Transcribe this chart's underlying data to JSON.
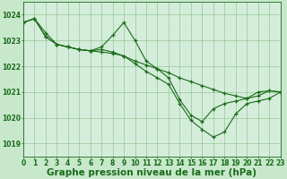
{
  "background_color": "#c8e8cc",
  "plot_bg_color": "#d4edda",
  "grid_color": "#88bb88",
  "line_color": "#1a6b1a",
  "xlabel": "Graphe pression niveau de la mer (hPa)",
  "xlabel_fontsize": 7.5,
  "tick_fontsize": 5.5,
  "ylim": [
    1018.5,
    1024.5
  ],
  "xlim": [
    0,
    23
  ],
  "yticks": [
    1019,
    1020,
    1021,
    1022,
    1023,
    1024
  ],
  "xticks": [
    0,
    1,
    2,
    3,
    4,
    5,
    6,
    7,
    8,
    9,
    10,
    11,
    12,
    13,
    14,
    15,
    16,
    17,
    18,
    19,
    20,
    21,
    22,
    23
  ],
  "series1": {
    "x": [
      0,
      1,
      2,
      3,
      4,
      5,
      6,
      7,
      8,
      9,
      10,
      11,
      12,
      13,
      14,
      15,
      16,
      17,
      18,
      19,
      20,
      21,
      22,
      23
    ],
    "y": [
      1023.7,
      1023.85,
      1023.3,
      1022.85,
      1022.75,
      1022.65,
      1022.6,
      1022.55,
      1022.5,
      1022.4,
      1022.2,
      1022.05,
      1021.9,
      1021.75,
      1021.55,
      1021.4,
      1021.25,
      1021.1,
      1020.95,
      1020.85,
      1020.75,
      1021.0,
      1021.05,
      1021.0
    ]
  },
  "series2": {
    "x": [
      0,
      1,
      2,
      3,
      4,
      5,
      6,
      7,
      8,
      9,
      10,
      11,
      12,
      13,
      14,
      15,
      16,
      17,
      18,
      19,
      20,
      21,
      22,
      23
    ],
    "y": [
      1023.7,
      1023.85,
      1023.15,
      1022.85,
      1022.75,
      1022.65,
      1022.6,
      1022.75,
      1023.2,
      1023.7,
      1023.0,
      1022.2,
      1021.9,
      1021.55,
      1020.7,
      1020.1,
      1019.85,
      1020.35,
      1020.55,
      1020.65,
      1020.75,
      1020.85,
      1021.05,
      1021.0
    ]
  },
  "series3": {
    "x": [
      0,
      1,
      2,
      3,
      4,
      5,
      6,
      7,
      8,
      9,
      10,
      11,
      12,
      13,
      14,
      15,
      16,
      17,
      18,
      19,
      20,
      21,
      22,
      23
    ],
    "y": [
      1023.7,
      1023.85,
      1023.15,
      1022.85,
      1022.75,
      1022.65,
      1022.6,
      1022.65,
      1022.55,
      1022.4,
      1022.1,
      1021.8,
      1021.55,
      1021.3,
      1020.55,
      1019.9,
      1019.55,
      1019.25,
      1019.45,
      1020.15,
      1020.55,
      1020.65,
      1020.75,
      1021.0
    ]
  }
}
